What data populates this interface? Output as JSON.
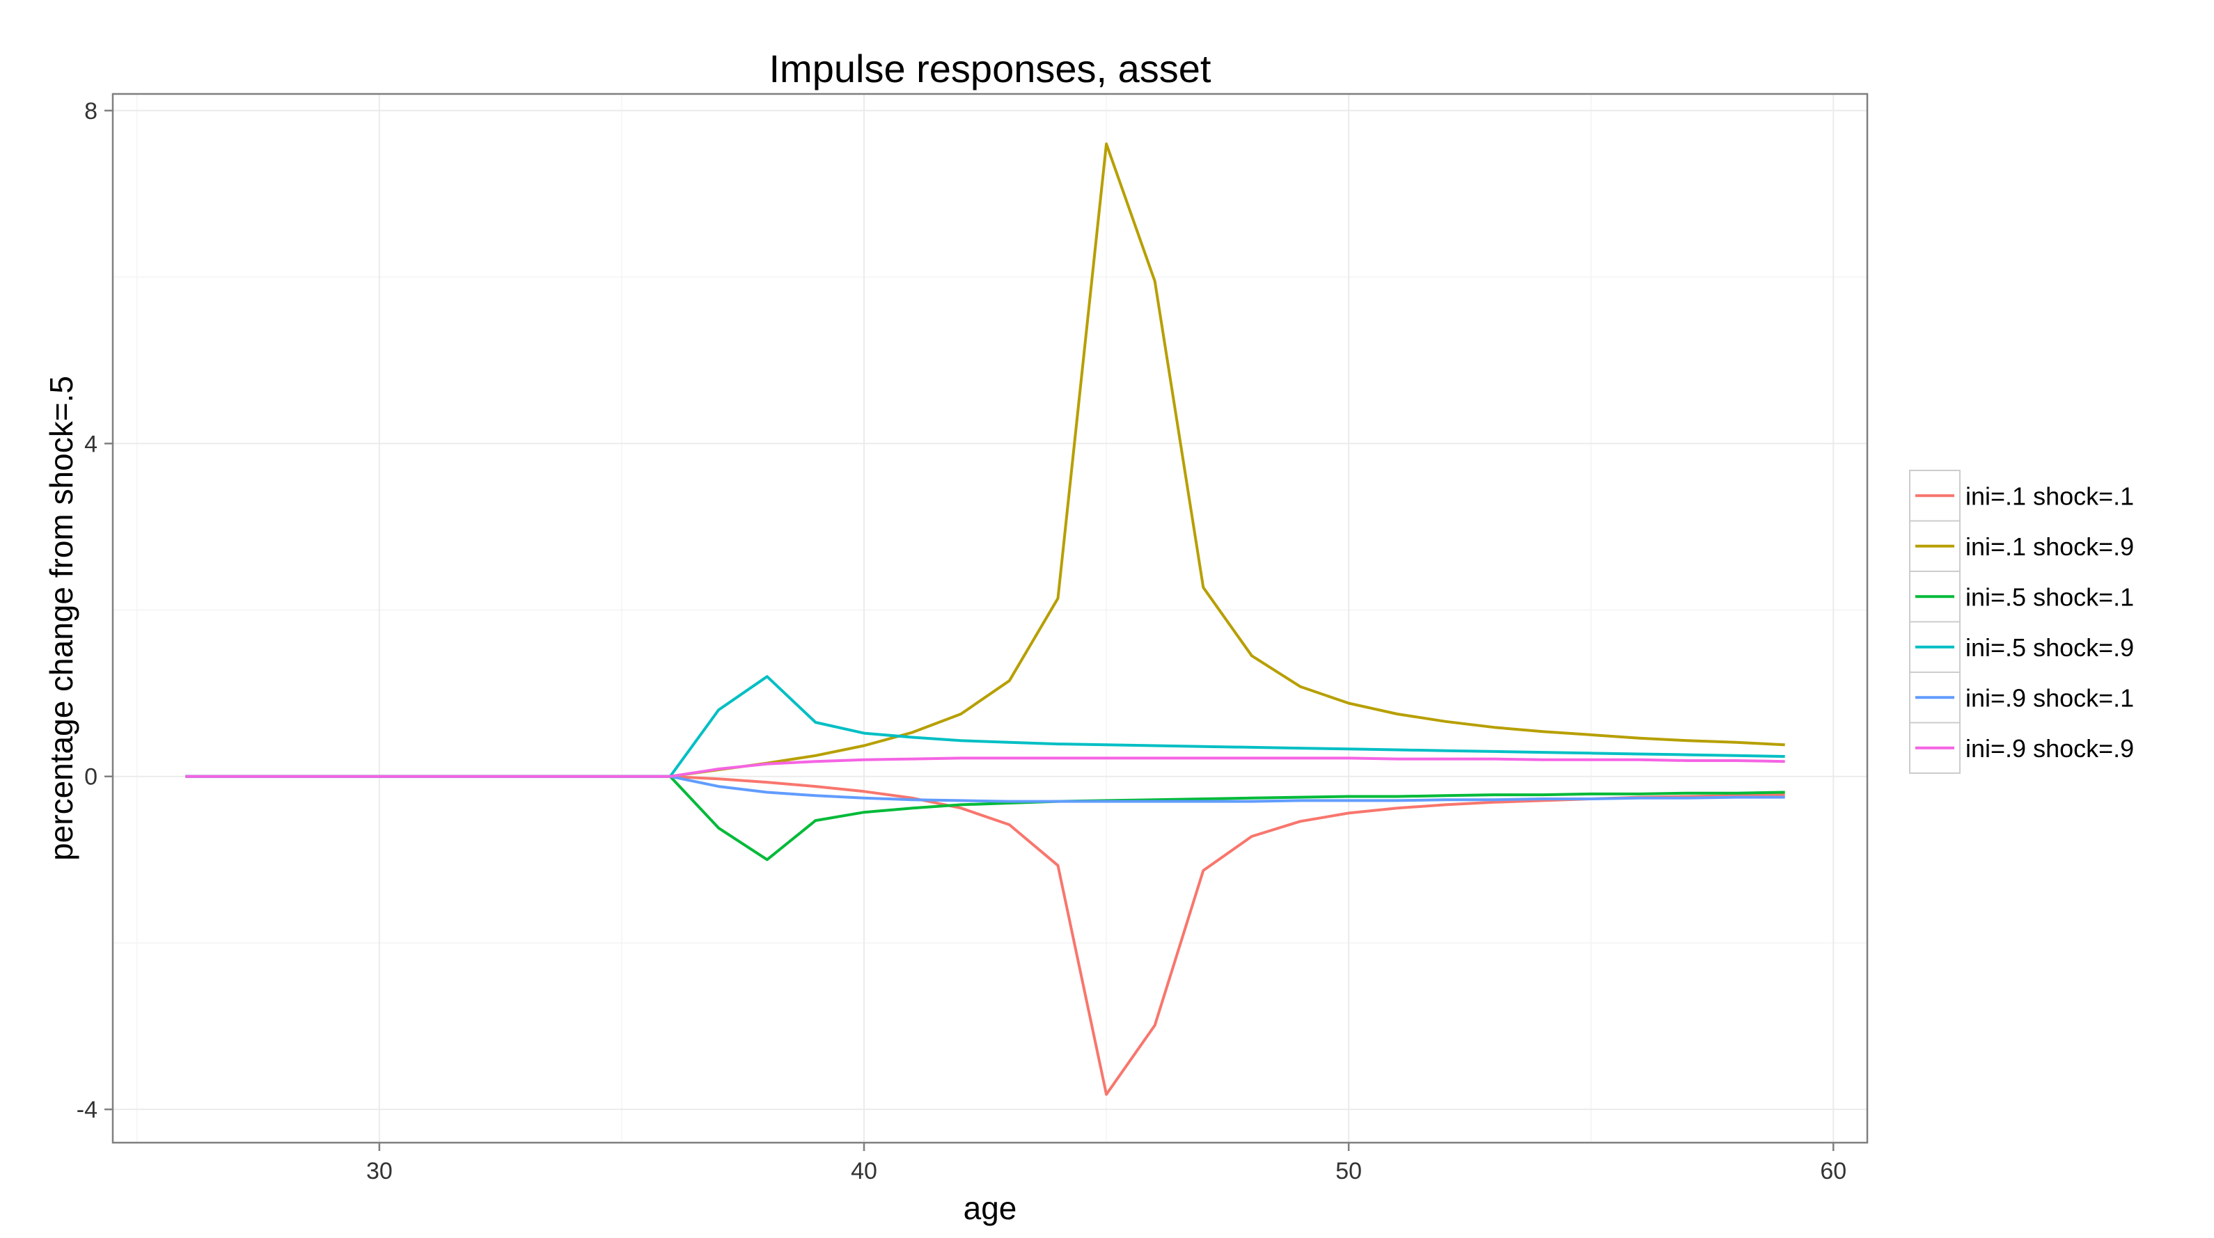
{
  "chart_data": {
    "type": "line",
    "title": "Impulse responses, asset",
    "xlabel": "age",
    "ylabel": "percentage change from shock=.5",
    "xlim": [
      24.5,
      60.7
    ],
    "ylim": [
      -4.4,
      8.2
    ],
    "xticks": [
      30,
      40,
      50,
      60
    ],
    "yticks": [
      -4,
      0,
      4,
      8
    ],
    "grid": true,
    "legend_position": "right",
    "x": [
      26,
      27,
      28,
      29,
      30,
      31,
      32,
      33,
      34,
      35,
      36,
      37,
      38,
      39,
      40,
      41,
      42,
      43,
      44,
      45,
      46,
      47,
      48,
      49,
      50,
      51,
      52,
      53,
      54,
      55,
      56,
      57,
      58,
      59
    ],
    "series": [
      {
        "name": "ini=.1 shock=.1",
        "color": "#F8766D",
        "values": [
          0,
          0,
          0,
          0,
          0,
          0,
          0,
          0,
          0,
          0,
          0,
          -0.03,
          -0.07,
          -0.12,
          -0.18,
          -0.26,
          -0.38,
          -0.58,
          -1.07,
          -3.82,
          -2.99,
          -1.13,
          -0.72,
          -0.54,
          -0.44,
          -0.38,
          -0.34,
          -0.31,
          -0.29,
          -0.27,
          -0.25,
          -0.24,
          -0.23,
          -0.22
        ]
      },
      {
        "name": "ini=.1 shock=.9",
        "color": "#B79F00",
        "values": [
          0,
          0,
          0,
          0,
          0,
          0,
          0,
          0,
          0,
          0,
          0,
          0.08,
          0.16,
          0.25,
          0.37,
          0.53,
          0.75,
          1.15,
          2.14,
          7.6,
          5.95,
          2.27,
          1.45,
          1.08,
          0.88,
          0.75,
          0.66,
          0.59,
          0.54,
          0.5,
          0.46,
          0.43,
          0.41,
          0.38
        ]
      },
      {
        "name": "ini=.5 shock=.1",
        "color": "#00BA38",
        "values": [
          0,
          0,
          0,
          0,
          0,
          0,
          0,
          0,
          0,
          0,
          0,
          -0.62,
          -1.0,
          -0.53,
          -0.43,
          -0.38,
          -0.34,
          -0.32,
          -0.3,
          -0.29,
          -0.28,
          -0.27,
          -0.26,
          -0.25,
          -0.24,
          -0.24,
          -0.23,
          -0.22,
          -0.22,
          -0.21,
          -0.21,
          -0.2,
          -0.2,
          -0.19
        ]
      },
      {
        "name": "ini=.5 shock=.9",
        "color": "#00BFC4",
        "values": [
          0,
          0,
          0,
          0,
          0,
          0,
          0,
          0,
          0,
          0,
          0,
          0.8,
          1.2,
          0.65,
          0.52,
          0.47,
          0.43,
          0.41,
          0.39,
          0.38,
          0.37,
          0.36,
          0.35,
          0.34,
          0.33,
          0.32,
          0.31,
          0.3,
          0.29,
          0.28,
          0.27,
          0.26,
          0.25,
          0.24
        ]
      },
      {
        "name": "ini=.9 shock=.1",
        "color": "#619CFF",
        "values": [
          0,
          0,
          0,
          0,
          0,
          0,
          0,
          0,
          0,
          0,
          0,
          -0.12,
          -0.19,
          -0.23,
          -0.26,
          -0.28,
          -0.29,
          -0.3,
          -0.3,
          -0.3,
          -0.3,
          -0.3,
          -0.3,
          -0.29,
          -0.29,
          -0.29,
          -0.28,
          -0.28,
          -0.27,
          -0.27,
          -0.26,
          -0.26,
          -0.25,
          -0.25
        ]
      },
      {
        "name": "ini=.9 shock=.9",
        "color": "#F564E3",
        "values": [
          0,
          0,
          0,
          0,
          0,
          0,
          0,
          0,
          0,
          0,
          0,
          0.09,
          0.15,
          0.18,
          0.2,
          0.21,
          0.22,
          0.22,
          0.22,
          0.22,
          0.22,
          0.22,
          0.22,
          0.22,
          0.22,
          0.21,
          0.21,
          0.21,
          0.2,
          0.2,
          0.2,
          0.19,
          0.19,
          0.18
        ]
      }
    ]
  }
}
